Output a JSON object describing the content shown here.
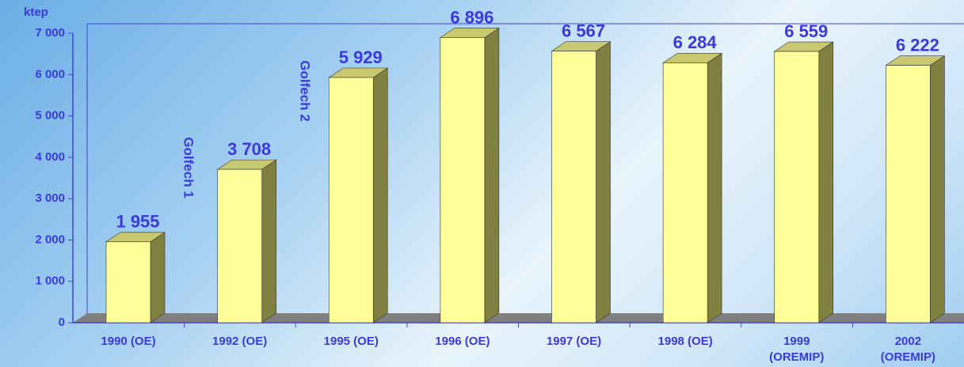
{
  "chart_data": {
    "type": "bar",
    "y_axis_label": "ktep",
    "categories": [
      "1990 (OE)",
      "1992 (OE)",
      "1995 (OE)",
      "1996 (OE)",
      "1997 (OE)",
      "1998 (OE)",
      "1999\n(OREMIP)",
      "2002\n(OREMIP)"
    ],
    "values": [
      1955,
      3708,
      5929,
      6896,
      6567,
      6284,
      6559,
      6222
    ],
    "value_labels": [
      "1 955",
      "3 708",
      "5 929",
      "6 896",
      "6 567",
      "6 284",
      "6 559",
      "6 222"
    ],
    "color": "#ffff99",
    "ylim": [
      0,
      7000
    ],
    "yticks": [
      0,
      {
        "value": 1000,
        "label": "1 000"
      },
      {
        "value": 2000,
        "label": "2 000"
      },
      {
        "value": 3000,
        "label": "3 000"
      },
      {
        "value": 4000,
        "label": "4 000"
      },
      {
        "value": 5000,
        "label": "5 000"
      },
      {
        "value": 6000,
        "label": "6 000"
      },
      {
        "value": 7000,
        "label": "7 000"
      }
    ],
    "annotations": [
      "Golfech 1",
      "Golfech 2"
    ]
  }
}
